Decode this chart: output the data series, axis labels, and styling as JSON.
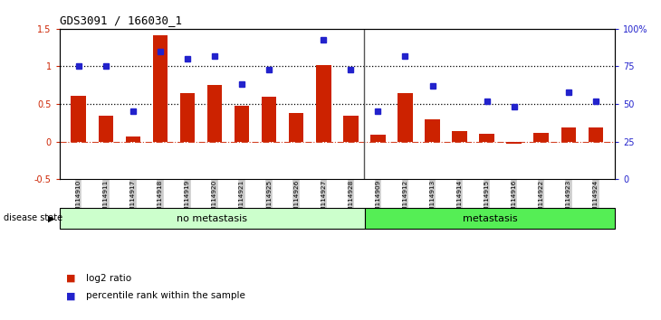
{
  "title": "GDS3091 / 166030_1",
  "samples": [
    "GSM114910",
    "GSM114911",
    "GSM114917",
    "GSM114918",
    "GSM114919",
    "GSM114920",
    "GSM114921",
    "GSM114925",
    "GSM114926",
    "GSM114927",
    "GSM114928",
    "GSM114909",
    "GSM114912",
    "GSM114913",
    "GSM114914",
    "GSM114915",
    "GSM114916",
    "GSM114922",
    "GSM114923",
    "GSM114924"
  ],
  "log2_ratio": [
    0.61,
    0.35,
    0.07,
    1.42,
    0.65,
    0.75,
    0.48,
    0.6,
    0.38,
    1.02,
    0.35,
    0.09,
    0.65,
    0.3,
    0.14,
    0.1,
    -0.03,
    0.11,
    0.19,
    0.19
  ],
  "percentile_rank_pct": [
    75,
    75,
    45,
    85,
    80,
    82,
    63,
    73,
    null,
    93,
    73,
    45,
    82,
    62,
    null,
    52,
    48,
    null,
    58,
    52
  ],
  "no_metastasis_count": 11,
  "metastasis_count": 9,
  "bar_color": "#cc2200",
  "dot_color": "#2222cc",
  "ylim_left": [
    -0.5,
    1.5
  ],
  "ylim_right": [
    0,
    100
  ],
  "yticks_left": [
    -0.5,
    0.0,
    0.5,
    1.0,
    1.5
  ],
  "ytick_labels_left": [
    "-0.5",
    "0",
    "0.5",
    "1",
    "1.5"
  ],
  "yticks_right": [
    0,
    25,
    50,
    75,
    100
  ],
  "ytick_labels_right": [
    "0",
    "25",
    "50",
    "75",
    "100%"
  ],
  "hlines_pct": [
    50,
    75
  ],
  "hline_zero": 0.0,
  "no_metastasis_label": "no metastasis",
  "metastasis_label": "metastasis",
  "disease_state_label": "disease state",
  "legend_bar_label": "log2 ratio",
  "legend_dot_label": "percentile rank within the sample",
  "no_metastasis_color": "#ccffcc",
  "metastasis_color": "#55ee55",
  "separator_color": "#555555",
  "bg_tick_color": "#cccccc"
}
